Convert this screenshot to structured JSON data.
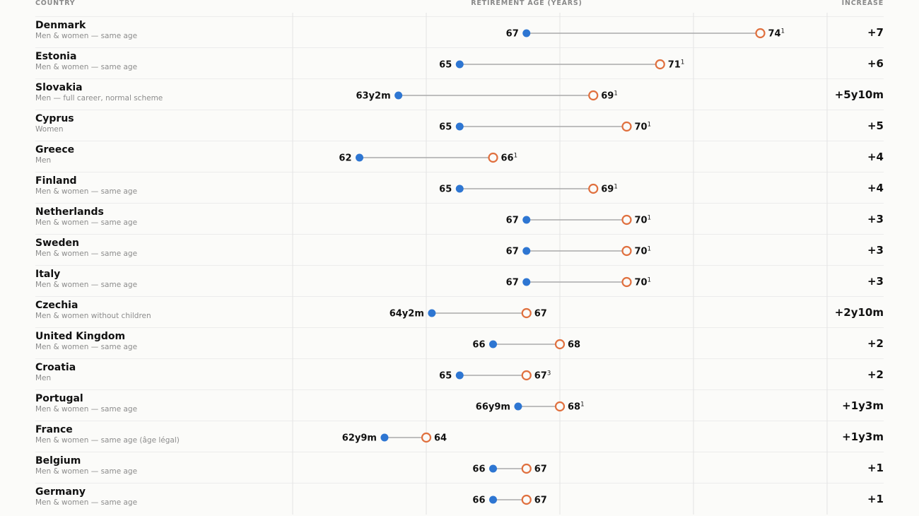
{
  "headers": {
    "country": "COUNTRY",
    "axis": "RETIREMENT AGE (YEARS)",
    "increase": "INCREASE"
  },
  "colors": {
    "current": "#2e76d2",
    "future": "#e0703e",
    "connector": "#aaaaaa",
    "grid": "#e3e3e3"
  },
  "chart_data": {
    "type": "dumbbell",
    "xlabel": "RETIREMENT AGE (YEARS)",
    "grid": true,
    "series": [
      {
        "name": "",
        "key": "current"
      },
      {
        "name": "",
        "key": "future"
      }
    ],
    "rows": [
      {
        "country": "Denmark",
        "group": "Men & women — same age",
        "current": 67,
        "current_label": "67",
        "future": 74,
        "future_label": "74",
        "note": "1",
        "increase": "+7"
      },
      {
        "country": "Estonia",
        "group": "Men & women — same age",
        "current": 65,
        "current_label": "65",
        "future": 71,
        "future_label": "71",
        "note": "1",
        "increase": "+6"
      },
      {
        "country": "Slovakia",
        "group": "Men — full career, normal scheme",
        "current": 63.1667,
        "current_label": "63y2m",
        "future": 69,
        "future_label": "69",
        "note": "1",
        "increase": "+5y10m"
      },
      {
        "country": "Cyprus",
        "group": "Women",
        "current": 65,
        "current_label": "65",
        "future": 70,
        "future_label": "70",
        "note": "1",
        "increase": "+5"
      },
      {
        "country": "Greece",
        "group": "Men",
        "current": 62,
        "current_label": "62",
        "future": 66,
        "future_label": "66",
        "note": "1",
        "increase": "+4"
      },
      {
        "country": "Finland",
        "group": "Men & women — same age",
        "current": 65,
        "current_label": "65",
        "future": 69,
        "future_label": "69",
        "note": "1",
        "increase": "+4"
      },
      {
        "country": "Netherlands",
        "group": "Men & women — same age",
        "current": 67,
        "current_label": "67",
        "future": 70,
        "future_label": "70",
        "note": "1",
        "increase": "+3"
      },
      {
        "country": "Sweden",
        "group": "Men & women — same age",
        "current": 67,
        "current_label": "67",
        "future": 70,
        "future_label": "70",
        "note": "1",
        "increase": "+3"
      },
      {
        "country": "Italy",
        "group": "Men & women — same age",
        "current": 67,
        "current_label": "67",
        "future": 70,
        "future_label": "70",
        "note": "1",
        "increase": "+3"
      },
      {
        "country": "Czechia",
        "group": "Men & women without children",
        "current": 64.1667,
        "current_label": "64y2m",
        "future": 67,
        "future_label": "67",
        "note": "",
        "increase": "+2y10m"
      },
      {
        "country": "United Kingdom",
        "group": "Men & women — same age",
        "current": 66,
        "current_label": "66",
        "future": 68,
        "future_label": "68",
        "note": "",
        "increase": "+2"
      },
      {
        "country": "Croatia",
        "group": "Men",
        "current": 65,
        "current_label": "65",
        "future": 67,
        "future_label": "67",
        "note": "3",
        "increase": "+2"
      },
      {
        "country": "Portugal",
        "group": "Men & women — same age",
        "current": 66.75,
        "current_label": "66y9m",
        "future": 68,
        "future_label": "68",
        "note": "1",
        "increase": "+1y3m"
      },
      {
        "country": "France",
        "group": "Men & women — same age (âge légal)",
        "current": 62.75,
        "current_label": "62y9m",
        "future": 64,
        "future_label": "64",
        "note": "",
        "increase": "+1y3m"
      },
      {
        "country": "Belgium",
        "group": "Men & women — same age",
        "current": 66,
        "current_label": "66",
        "future": 67,
        "future_label": "67",
        "note": "",
        "increase": "+1"
      },
      {
        "country": "Germany",
        "group": "Men & women — same age",
        "current": 66,
        "current_label": "66",
        "future": 67,
        "future_label": "67",
        "note": "",
        "increase": "+1"
      }
    ]
  }
}
